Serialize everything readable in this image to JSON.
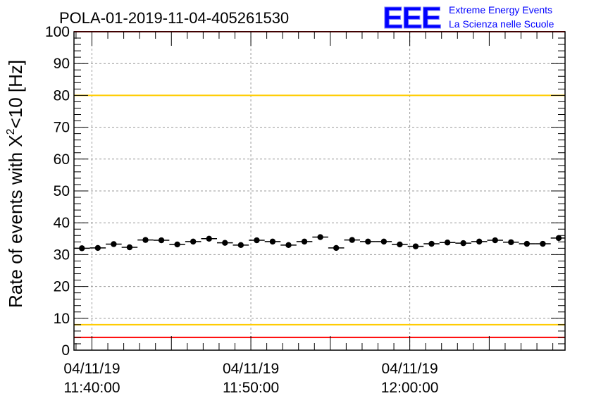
{
  "chart_data": {
    "type": "scatter",
    "title": "POLA-01-2019-11-04-405261530",
    "ylabel": "Rate of events with X",
    "ylabel_sup": "2",
    "ylabel_suffix": "<10 [Hz]",
    "xlabel": "",
    "ylim": [
      0,
      100
    ],
    "y_major_ticks": [
      0,
      10,
      20,
      30,
      40,
      50,
      60,
      70,
      80,
      90,
      100
    ],
    "xlim_minutes": [
      -1.13,
      29.77
    ],
    "x_tick_labels": [
      {
        "minute": 0,
        "date": "04/11/19",
        "time": "11:40:00"
      },
      {
        "minute": 10,
        "date": "04/11/19",
        "time": "11:50:00"
      },
      {
        "minute": 20,
        "date": "04/11/19",
        "time": "12:00:00"
      }
    ],
    "x_grid_minutes": [
      0,
      10,
      20
    ],
    "grid": true,
    "reference_lines": [
      {
        "y": 100,
        "color": "#ff0000"
      },
      {
        "y": 80,
        "color": "#ffcc00"
      },
      {
        "y": 8,
        "color": "#ffcc00"
      },
      {
        "y": 4,
        "color": "#ff0000"
      }
    ],
    "bin_width_minutes": 1.0,
    "series": [
      {
        "marker_color": "#000000",
        "x_minutes": [
          -0.63,
          0.37,
          1.37,
          2.37,
          3.37,
          4.37,
          5.37,
          6.37,
          7.37,
          8.37,
          9.37,
          10.37,
          11.37,
          12.37,
          13.37,
          14.37,
          15.37,
          16.37,
          17.37,
          18.37,
          19.37,
          20.37,
          21.37,
          22.37,
          23.37,
          24.37,
          25.37,
          26.37,
          27.37,
          28.37,
          29.37
        ],
        "values": [
          32.0,
          32.1,
          33.3,
          32.3,
          34.6,
          34.5,
          33.2,
          34.1,
          35.0,
          33.7,
          33.0,
          34.5,
          34.1,
          33.0,
          34.1,
          35.5,
          32.1,
          34.6,
          34.1,
          34.1,
          33.2,
          32.6,
          33.4,
          33.8,
          33.6,
          34.1,
          34.5,
          33.9,
          33.4,
          33.4,
          35.2
        ]
      }
    ]
  },
  "logo": {
    "text": "EEE",
    "line1": "Extreme Energy Events",
    "line2": "La Scienza nelle Scuole",
    "color": "#0000ff"
  }
}
